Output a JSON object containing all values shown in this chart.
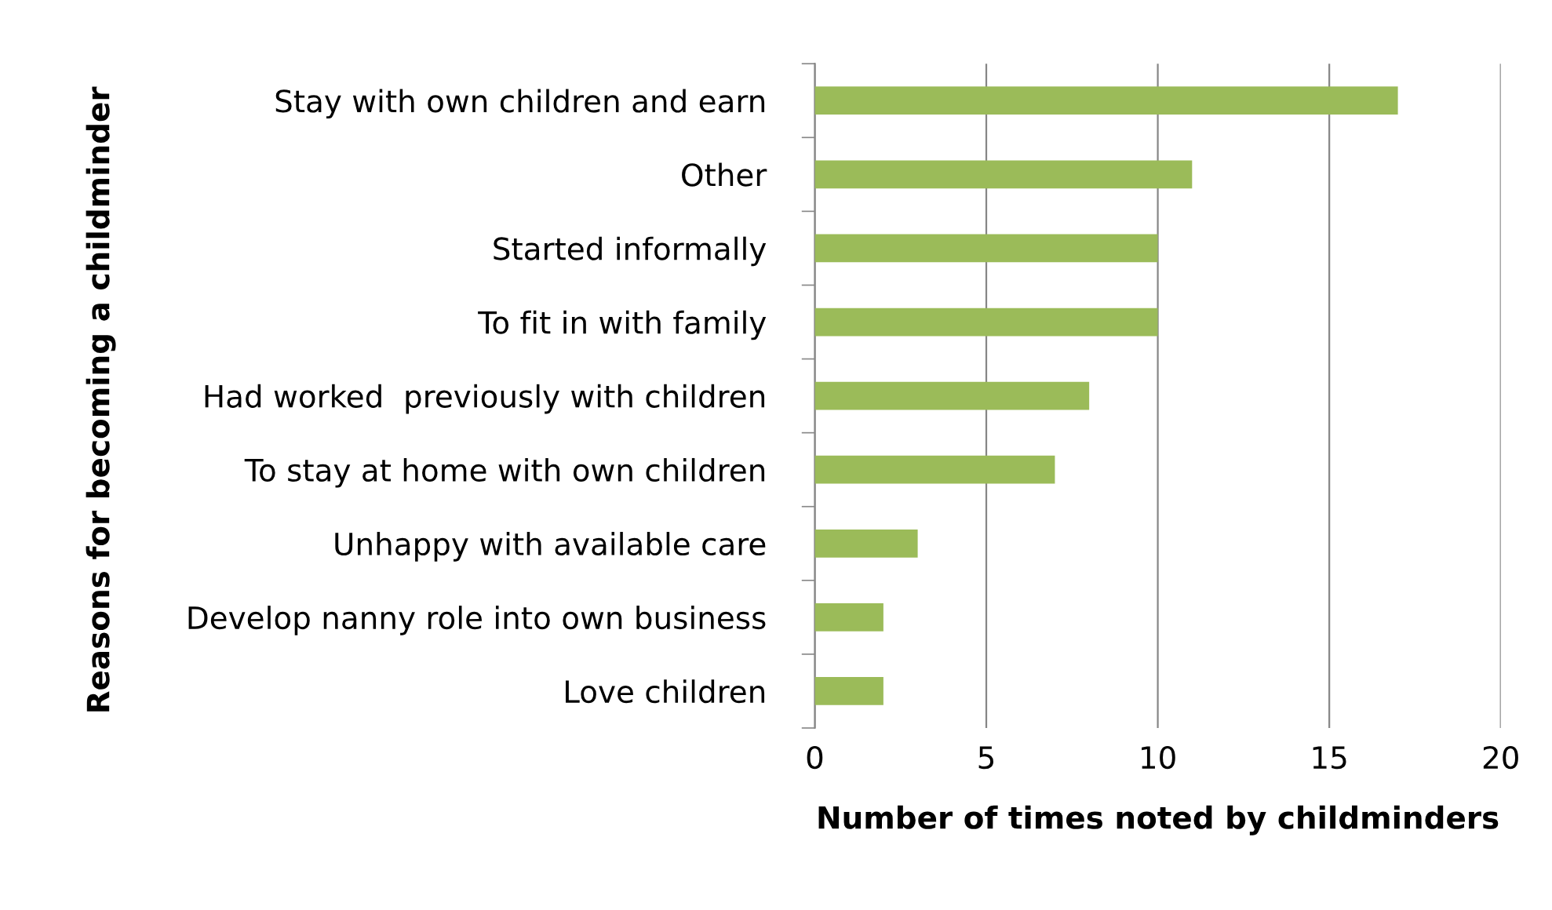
{
  "chart_data": {
    "type": "bar",
    "orientation": "horizontal",
    "xlabel": "Number of times noted by childminders",
    "ylabel": "Reasons for becoming a childminder",
    "categories": [
      "Stay with own children and earn",
      "Other",
      "Started informally",
      "To fit in with family",
      "Had worked  previously with children",
      "To stay at home with own children",
      "Unhappy with available care",
      "Develop nanny role into own business",
      "Love children"
    ],
    "values": [
      17,
      11,
      10,
      10,
      8,
      7,
      3,
      2,
      2
    ],
    "color": "#9bbb59",
    "xlim": [
      0,
      20
    ],
    "xticks": [
      0,
      5,
      10,
      15,
      20
    ],
    "grid": "x"
  }
}
